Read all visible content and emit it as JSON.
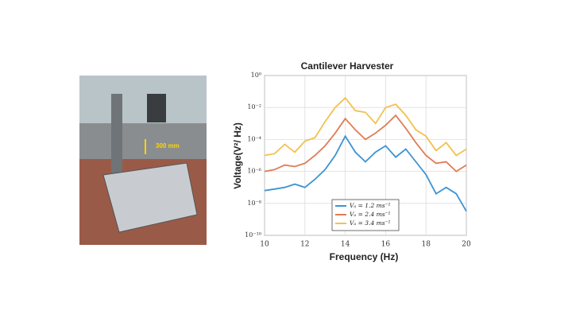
{
  "photo": {
    "annotation": "300 mm"
  },
  "chart_data": {
    "type": "line",
    "title": "Cantilever Harvester",
    "x_label": "Frequency (Hz)",
    "y_label": "Voltage(V²/ Hz)",
    "x": [
      10,
      10.5,
      11,
      11.5,
      12,
      12.5,
      13,
      13.5,
      14,
      14.5,
      15,
      15.5,
      16,
      16.5,
      17,
      17.5,
      18,
      18.5,
      19,
      19.5,
      20
    ],
    "series": [
      {
        "name": "Vₐ = 1.2 ms⁻¹",
        "color": "#3d93d1",
        "values": [
          6.3e-08,
          7.9e-08,
          1e-07,
          1.6e-07,
          1e-07,
          3.2e-07,
          1.3e-06,
          1e-05,
          0.00016,
          1.6e-05,
          4e-06,
          1.6e-05,
          4e-05,
          7.9e-06,
          2.5e-05,
          4e-06,
          6.3e-07,
          4e-08,
          1e-07,
          4e-08,
          3.2e-09
        ]
      },
      {
        "name": "Vₐ = 2.4 ms⁻¹",
        "color": "#e07b54",
        "values": [
          1e-06,
          1.3e-06,
          2.5e-06,
          2e-06,
          3.2e-06,
          1e-05,
          4e-05,
          0.00025,
          0.002,
          0.0004,
          0.0001,
          0.00025,
          0.00079,
          0.0032,
          0.0005,
          6.3e-05,
          1e-05,
          3.2e-06,
          4e-06,
          1e-06,
          2.5e-06
        ]
      },
      {
        "name": "Vₐ = 3.4 ms⁻¹",
        "color": "#f2c14e",
        "values": [
          1e-05,
          1.3e-05,
          5e-05,
          1.6e-05,
          7.9e-05,
          0.00013,
          0.0013,
          0.01,
          0.04,
          0.0063,
          0.005,
          0.001,
          0.01,
          0.016,
          0.0032,
          0.0004,
          0.00016,
          2e-05,
          6.3e-05,
          1e-05,
          2.5e-05
        ]
      }
    ],
    "xlim": [
      10,
      20
    ],
    "xticks": [
      10,
      12,
      14,
      16,
      18,
      20
    ],
    "ylim": [
      1e-10,
      1
    ],
    "log_y": true,
    "yticks": [
      {
        "value": 1e-10,
        "label": "10⁻¹⁰"
      },
      {
        "value": 1e-08,
        "label": "10⁻⁸"
      },
      {
        "value": 1e-06,
        "label": "10⁻⁶"
      },
      {
        "value": 0.0001,
        "label": "10⁻⁴"
      },
      {
        "value": 0.01,
        "label": "10⁻²"
      },
      {
        "value": 1,
        "label": "10⁰"
      }
    ],
    "grid": true,
    "legend": "lower center"
  }
}
